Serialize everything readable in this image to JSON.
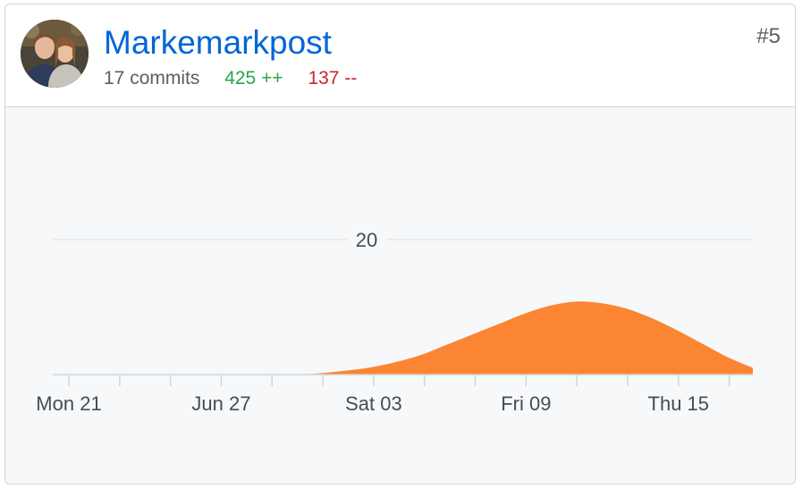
{
  "contributor": {
    "name": "Markemarkpost",
    "commits_label": "17 commits",
    "additions_label": "425 ++",
    "deletions_label": "137 --",
    "rank_label": "#5",
    "avatar_icon": "user-avatar-photo"
  },
  "colors": {
    "link": "#0366d6",
    "additions": "#28a745",
    "deletions": "#cb2431",
    "area_fill": "#fb8532",
    "chart_bg": "#f6f8fa"
  },
  "chart_data": {
    "type": "area",
    "x": [
      "Jun 21",
      "Jun 22",
      "Jun 23",
      "Jun 24",
      "Jun 25",
      "Jun 26",
      "Jun 27",
      "Jun 28",
      "Jun 29",
      "Jun 30",
      "Jul 01",
      "Jul 02",
      "Jul 03",
      "Jul 04",
      "Jul 05",
      "Jul 06",
      "Jul 07",
      "Jul 08",
      "Jul 09",
      "Jul 10",
      "Jul 11",
      "Jul 12",
      "Jul 13",
      "Jul 14",
      "Jul 15",
      "Jul 16",
      "Jul 17",
      "Jul 18"
    ],
    "series": [
      {
        "values": [
          0,
          0,
          0,
          0,
          0,
          0,
          0,
          0,
          0,
          0,
          0.2,
          0.6,
          1.1,
          1.9,
          3.0,
          4.5,
          6.0,
          7.5,
          9.0,
          10.2,
          10.8,
          10.6,
          9.8,
          8.4,
          6.6,
          4.6,
          2.6,
          1.0
        ]
      }
    ],
    "x_tick_labels": [
      "Mon 21",
      "Jun 27",
      "Sat 03",
      "Fri 09",
      "Thu 15"
    ],
    "x_tick_label_dates": [
      "Jun 21",
      "Jun 27",
      "Jul 03",
      "Jul 09",
      "Jul 15"
    ],
    "y_tick_labels": [
      "20"
    ],
    "y_gridlines": [
      20
    ],
    "ylim": [
      0,
      20
    ],
    "grid": true,
    "legend": "none"
  }
}
